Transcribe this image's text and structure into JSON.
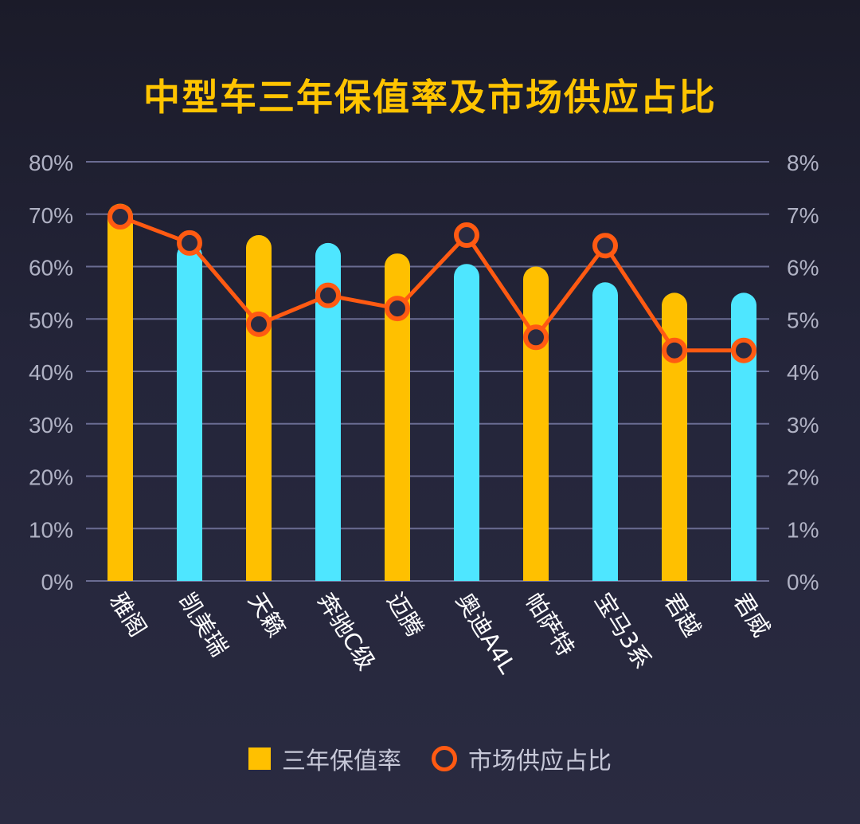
{
  "chart_data": {
    "type": "bar",
    "title": "中型车三年保值率及市场供应占比",
    "categories": [
      "雅阁",
      "凯美瑞",
      "天籁",
      "奔驰C级",
      "迈腾",
      "奥迪A4L",
      "帕萨特",
      "宝马3系",
      "君越",
      "君威"
    ],
    "series": [
      {
        "name": "三年保值率",
        "type": "bar",
        "axis": "left",
        "values": [
          72,
          64.5,
          66,
          64.5,
          62.5,
          60.5,
          60,
          57,
          55,
          55
        ],
        "colors": [
          "#ffc000",
          "#4ee6ff",
          "#ffc000",
          "#4ee6ff",
          "#ffc000",
          "#4ee6ff",
          "#ffc000",
          "#4ee6ff",
          "#ffc000",
          "#4ee6ff"
        ]
      },
      {
        "name": "市场供应占比",
        "type": "line",
        "axis": "right",
        "values": [
          6.95,
          6.45,
          4.9,
          5.45,
          5.2,
          6.6,
          4.65,
          6.4,
          4.4,
          4.4
        ],
        "color": "#ff5a12"
      }
    ],
    "ylim_left": [
      0,
      80
    ],
    "ylim_right": [
      0,
      8
    ],
    "yticks_left": [
      "0%",
      "10%",
      "20%",
      "30%",
      "40%",
      "50%",
      "60%",
      "70%",
      "80%"
    ],
    "yticks_right": [
      "0%",
      "1%",
      "2%",
      "3%",
      "4%",
      "5%",
      "6%",
      "7%",
      "8%"
    ],
    "grid": true,
    "legend_position": "bottom"
  },
  "legend": {
    "bar_label": "三年保值率",
    "line_label": "市场供应占比"
  },
  "colors": {
    "title": "#ffc400",
    "bar_gold": "#ffc000",
    "bar_cyan": "#4ee6ff",
    "line": "#ff5a12",
    "grid": "#6a6c92",
    "axis_text": "#b0b2c4"
  }
}
